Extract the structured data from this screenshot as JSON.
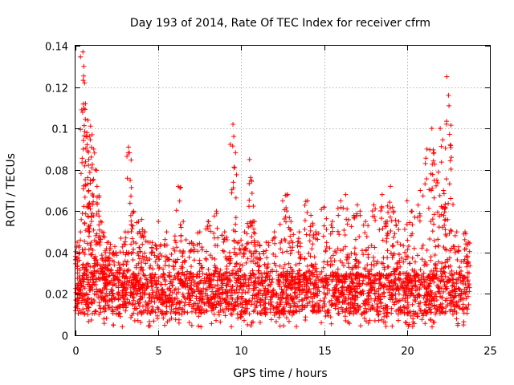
{
  "chart_data": {
    "type": "scatter",
    "title": "Day 193 of 2014, Rate Of TEC Index for receiver cfrm",
    "xlabel": "GPS time / hours",
    "ylabel": "ROTI / TECUs",
    "xlim": [
      0,
      25
    ],
    "ylim": [
      0,
      0.14
    ],
    "xticks": [
      0,
      5,
      10,
      15,
      20,
      25
    ],
    "xtick_labels": [
      "0",
      "5",
      "10",
      "15",
      "20",
      "25"
    ],
    "yticks": [
      0,
      0.02,
      0.04,
      0.06,
      0.08,
      0.1,
      0.12,
      0.14
    ],
    "ytick_labels": [
      "0",
      "0.02",
      "0.04",
      "0.06",
      "0.08",
      "0.1",
      "0.12",
      "0.14"
    ],
    "grid": true,
    "marker": "plus",
    "color": "#ff0000",
    "data_x_range": [
      0,
      23.8
    ],
    "baseline_band": [
      0.01,
      0.03
    ],
    "series": [
      {
        "name": "ROTI",
        "x": [
          0.1,
          0.3,
          0.45,
          0.5,
          0.55,
          0.6,
          0.7,
          0.75,
          0.8,
          0.9,
          1.0,
          1.1,
          1.2,
          1.3,
          1.4,
          1.5,
          1.6,
          1.8,
          2.0,
          2.3,
          2.6,
          3.0,
          3.2,
          3.3,
          3.5,
          3.8,
          4.0,
          4.2,
          4.5,
          5.0,
          5.5,
          6.0,
          6.2,
          6.5,
          7.0,
          7.5,
          8.0,
          8.5,
          9.0,
          9.3,
          9.5,
          9.6,
          9.8,
          10.2,
          10.5,
          10.6,
          10.8,
          11.0,
          11.5,
          12.0,
          12.5,
          12.8,
          13.0,
          13.5,
          14.0,
          14.2,
          14.5,
          15.0,
          15.5,
          16.0,
          16.3,
          16.8,
          17.0,
          17.5,
          18.0,
          18.5,
          18.8,
          19.0,
          19.2,
          19.5,
          20.0,
          20.3,
          20.8,
          21.2,
          21.5,
          21.6,
          21.8,
          22.0,
          22.2,
          22.3,
          22.4,
          22.5,
          22.6,
          23.0,
          23.5,
          23.7
        ],
        "y": [
          0.045,
          0.05,
          0.137,
          0.13,
          0.122,
          0.112,
          0.096,
          0.104,
          0.085,
          0.075,
          0.097,
          0.09,
          0.08,
          0.072,
          0.06,
          0.055,
          0.05,
          0.04,
          0.045,
          0.04,
          0.035,
          0.05,
          0.091,
          0.075,
          0.06,
          0.055,
          0.056,
          0.05,
          0.045,
          0.055,
          0.05,
          0.048,
          0.072,
          0.055,
          0.045,
          0.05,
          0.055,
          0.06,
          0.05,
          0.04,
          0.102,
          0.081,
          0.045,
          0.05,
          0.085,
          0.075,
          0.055,
          0.045,
          0.045,
          0.05,
          0.065,
          0.068,
          0.055,
          0.05,
          0.065,
          0.058,
          0.05,
          0.062,
          0.055,
          0.065,
          0.068,
          0.058,
          0.063,
          0.055,
          0.063,
          0.068,
          0.055,
          0.072,
          0.06,
          0.055,
          0.065,
          0.06,
          0.07,
          0.09,
          0.1,
          0.088,
          0.075,
          0.1,
          0.07,
          0.062,
          0.125,
          0.116,
          0.092,
          0.05,
          0.05,
          0.045
        ]
      }
    ]
  }
}
